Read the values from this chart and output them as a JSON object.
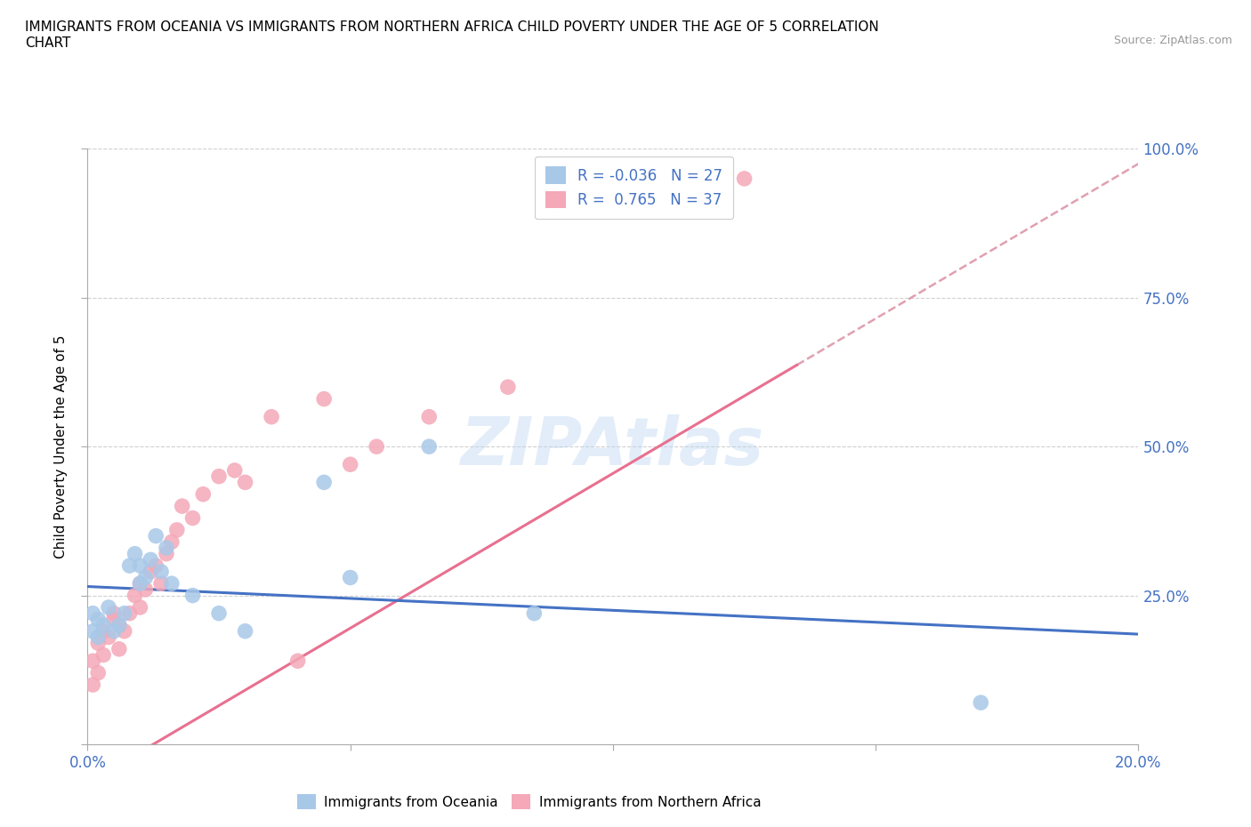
{
  "title": "IMMIGRANTS FROM OCEANIA VS IMMIGRANTS FROM NORTHERN AFRICA CHILD POVERTY UNDER THE AGE OF 5 CORRELATION\nCHART",
  "source": "Source: ZipAtlas.com",
  "ylabel": "Child Poverty Under the Age of 5",
  "x_min": 0.0,
  "x_max": 0.2,
  "y_min": 0.0,
  "y_max": 1.0,
  "x_ticks": [
    0.0,
    0.05,
    0.1,
    0.15,
    0.2
  ],
  "x_tick_labels": [
    "0.0%",
    "",
    "",
    "",
    "20.0%"
  ],
  "y_ticks": [
    0.0,
    0.25,
    0.5,
    0.75,
    1.0
  ],
  "y_tick_labels": [
    "",
    "25.0%",
    "50.0%",
    "75.0%",
    "100.0%"
  ],
  "R_oceania": -0.036,
  "N_oceania": 27,
  "R_africa": 0.765,
  "N_africa": 37,
  "color_oceania": "#a8c8e8",
  "color_africa": "#f4a8b8",
  "line_color_oceania": "#4472c4",
  "line_color_africa": "#e87090",
  "dashed_color": "#e0a0b0",
  "background_color": "#ffffff",
  "watermark": "ZIPAtlas",
  "grid_color": "#d0d0d0",
  "oceania_slope": -0.4,
  "oceania_intercept": 0.265,
  "africa_slope": 5.2,
  "africa_intercept": -0.065,
  "oceania_points_x": [
    0.001,
    0.001,
    0.002,
    0.002,
    0.003,
    0.004,
    0.005,
    0.006,
    0.007,
    0.008,
    0.009,
    0.01,
    0.01,
    0.011,
    0.012,
    0.013,
    0.014,
    0.015,
    0.016,
    0.02,
    0.025,
    0.03,
    0.045,
    0.05,
    0.065,
    0.085,
    0.17
  ],
  "oceania_points_y": [
    0.19,
    0.22,
    0.18,
    0.21,
    0.2,
    0.23,
    0.19,
    0.2,
    0.22,
    0.3,
    0.32,
    0.27,
    0.3,
    0.28,
    0.31,
    0.35,
    0.29,
    0.33,
    0.27,
    0.25,
    0.22,
    0.19,
    0.44,
    0.28,
    0.5,
    0.22,
    0.07
  ],
  "africa_points_x": [
    0.001,
    0.001,
    0.002,
    0.002,
    0.003,
    0.003,
    0.004,
    0.005,
    0.005,
    0.006,
    0.006,
    0.007,
    0.008,
    0.009,
    0.01,
    0.01,
    0.011,
    0.012,
    0.013,
    0.014,
    0.015,
    0.016,
    0.017,
    0.018,
    0.02,
    0.022,
    0.025,
    0.028,
    0.03,
    0.035,
    0.04,
    0.045,
    0.05,
    0.055,
    0.065,
    0.08,
    0.125
  ],
  "africa_points_y": [
    0.1,
    0.14,
    0.12,
    0.17,
    0.15,
    0.19,
    0.18,
    0.21,
    0.22,
    0.2,
    0.16,
    0.19,
    0.22,
    0.25,
    0.23,
    0.27,
    0.26,
    0.29,
    0.3,
    0.27,
    0.32,
    0.34,
    0.36,
    0.4,
    0.38,
    0.42,
    0.45,
    0.46,
    0.44,
    0.55,
    0.14,
    0.58,
    0.47,
    0.5,
    0.55,
    0.6,
    0.95
  ]
}
